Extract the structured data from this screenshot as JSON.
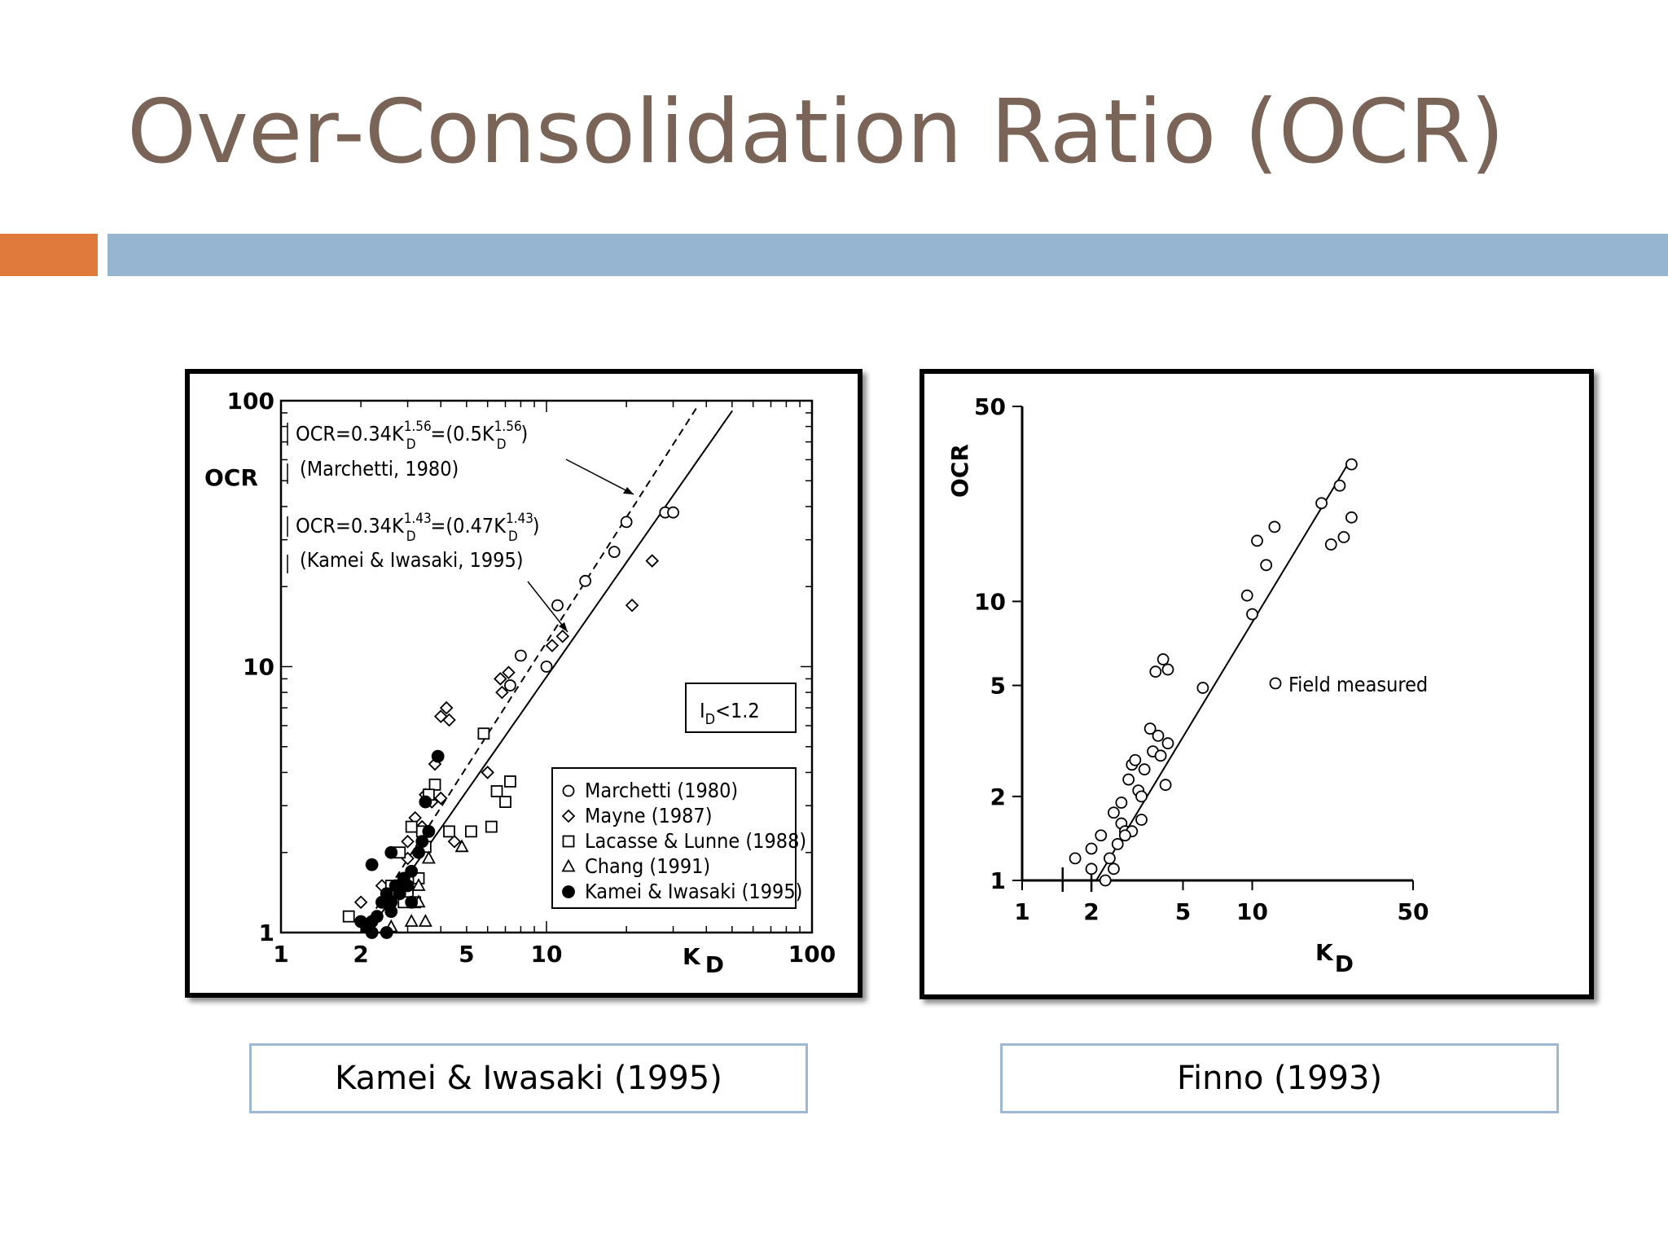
{
  "slide": {
    "title": "Over-Consolidation Ratio (OCR)",
    "colors": {
      "title": "#7a6357",
      "accent_orange": "#e07a3c",
      "accent_blue": "#95b5d1",
      "caption_border": "#9db8d4"
    }
  },
  "captions": {
    "left": "Kamei & Iwasaki (1995)",
    "right": "Finno (1993)"
  },
  "chart_data": [
    {
      "type": "scatter",
      "xscale": "log",
      "yscale": "log",
      "xlim": [
        1,
        100
      ],
      "ylim": [
        1,
        100
      ],
      "xlabel": "K",
      "xlabel_sub": "D",
      "ylabel": "OCR",
      "xticks": [
        1,
        2,
        5,
        10,
        100
      ],
      "yticks": [
        1,
        10,
        100
      ],
      "box_label": {
        "main": "I",
        "sub": "D",
        "rest": "<1.2"
      },
      "lines": [
        {
          "style": "dashed",
          "coef": 0.34,
          "exp": 1.56,
          "x": [
            1,
            100
          ]
        },
        {
          "style": "solid",
          "coef": 0.34,
          "exp": 1.43,
          "x": [
            1,
            100
          ]
        }
      ],
      "equations": [
        {
          "lhs": "OCR=0.34K",
          "sub": "D",
          "exp": "1.56",
          "mid": "=(0.5K",
          "sub2": "D",
          "exp2": "1.56",
          "end": ")",
          "ref": "(Marchetti, 1980)"
        },
        {
          "lhs": "OCR=0.34K",
          "sub": "D",
          "exp": "1.43",
          "mid": "=(0.47K",
          "sub2": "D",
          "exp2": "1.43",
          "end": ")",
          "ref": "(Kamei & Iwasaki, 1995)"
        }
      ],
      "legend_position": "lower-right",
      "series": [
        {
          "name": "Marchetti (1980)",
          "marker": "circle-open",
          "points": [
            [
              20,
              35
            ],
            [
              18,
              27
            ],
            [
              14,
              21
            ],
            [
              11,
              17
            ],
            [
              8,
              11
            ],
            [
              10,
              10
            ],
            [
              7.3,
              8.5
            ],
            [
              28,
              38
            ],
            [
              30,
              38
            ]
          ]
        },
        {
          "name": "Mayne (1987)",
          "marker": "diamond-open",
          "points": [
            [
              4.2,
              7
            ],
            [
              4,
              6.5
            ],
            [
              4.3,
              6.3
            ],
            [
              3.8,
              4.3
            ],
            [
              6,
              4
            ],
            [
              6.7,
              9
            ],
            [
              7.2,
              9.5
            ],
            [
              6.8,
              8
            ],
            [
              10.5,
              12
            ],
            [
              11.5,
              13
            ],
            [
              25,
              25
            ],
            [
              21,
              17
            ],
            [
              3.5,
              3.3
            ],
            [
              3.2,
              2.7
            ],
            [
              3,
              2.2
            ],
            [
              2.4,
              1.5
            ],
            [
              2,
              1.3
            ],
            [
              3.4,
              2.5
            ],
            [
              3.7,
              3.1
            ],
            [
              4,
              3.2
            ],
            [
              4.5,
              2.2
            ],
            [
              3,
              1.9
            ]
          ]
        },
        {
          "name": "Lacasse & Lunne (1988)",
          "marker": "square-open",
          "points": [
            [
              1.8,
              1.15
            ],
            [
              2.1,
              1.05
            ],
            [
              2.6,
              1.5
            ],
            [
              2.8,
              2
            ],
            [
              3,
              1.4
            ],
            [
              3.3,
              1.6
            ],
            [
              3.5,
              2.1
            ],
            [
              3.4,
              2.4
            ],
            [
              3.8,
              3.6
            ],
            [
              3.6,
              3.3
            ],
            [
              4.3,
              2.4
            ],
            [
              5.2,
              2.4
            ],
            [
              6.5,
              3.4
            ],
            [
              7.3,
              3.7
            ],
            [
              6.2,
              2.5
            ],
            [
              5.8,
              5.6
            ],
            [
              7,
              3.1
            ],
            [
              3.1,
              2.5
            ],
            [
              2.9,
              1.3
            ],
            [
              3.2,
              1.3
            ]
          ]
        },
        {
          "name": "Chang (1991)",
          "marker": "triangle-open",
          "points": [
            [
              3.5,
              1.1
            ],
            [
              3.3,
              1.3
            ],
            [
              2.6,
              1.05
            ],
            [
              3.3,
              1.5
            ],
            [
              4.8,
              2.1
            ],
            [
              3.6,
              1.9
            ],
            [
              3.1,
              1.1
            ]
          ]
        },
        {
          "name": "Kamei & Iwasaki (1995)",
          "marker": "circle-filled",
          "points": [
            [
              2,
              1.1
            ],
            [
              2.1,
              1.05
            ],
            [
              2.2,
              1.1
            ],
            [
              2.3,
              1.15
            ],
            [
              2.2,
              1
            ],
            [
              2.5,
              1.4
            ],
            [
              2.6,
              1.3
            ],
            [
              2.7,
              1.5
            ],
            [
              2.8,
              1.4
            ],
            [
              2.9,
              1.6
            ],
            [
              3,
              1.5
            ],
            [
              3.1,
              1.7
            ],
            [
              3.3,
              2
            ],
            [
              3.4,
              2.2
            ],
            [
              3.6,
              2.4
            ],
            [
              2.6,
              1.2
            ],
            [
              2.4,
              1.3
            ],
            [
              3.9,
              4.6
            ],
            [
              3.5,
              3.1
            ],
            [
              2.6,
              2
            ],
            [
              2.2,
              1.8
            ],
            [
              3.1,
              1.3
            ],
            [
              2.5,
              1
            ]
          ]
        }
      ]
    },
    {
      "type": "scatter",
      "xscale": "log",
      "yscale": "log",
      "xlim": [
        1,
        50
      ],
      "ylim": [
        1,
        50
      ],
      "xlabel": "K",
      "xlabel_sub": "D",
      "ylabel": "OCR",
      "xticks": [
        1,
        2,
        5,
        10,
        50
      ],
      "yticks": [
        1,
        2,
        5,
        10,
        50
      ],
      "lines": [
        {
          "style": "solid",
          "x": [
            2.1,
            26
          ],
          "y": [
            1,
            31
          ]
        }
      ],
      "legend_position": "center-right",
      "series": [
        {
          "name": "Field measured",
          "marker": "circle-open",
          "points": [
            [
              1.7,
              1.2
            ],
            [
              2,
              1.3
            ],
            [
              2,
              1.1
            ],
            [
              2.2,
              1.45
            ],
            [
              2.4,
              1.2
            ],
            [
              2.5,
              1.1
            ],
            [
              2.6,
              1.35
            ],
            [
              2.7,
              1.6
            ],
            [
              2.8,
              1.5
            ],
            [
              2.5,
              1.75
            ],
            [
              2.7,
              1.9
            ],
            [
              2.9,
              2.3
            ],
            [
              3,
              2.6
            ],
            [
              3.1,
              2.7
            ],
            [
              3.2,
              2.1
            ],
            [
              3.3,
              2
            ],
            [
              3.4,
              2.5
            ],
            [
              3.6,
              3.5
            ],
            [
              3.7,
              2.9
            ],
            [
              3.9,
              3.3
            ],
            [
              4,
              2.8
            ],
            [
              4.3,
              3.1
            ],
            [
              4.2,
              2.2
            ],
            [
              3.8,
              5.6
            ],
            [
              4.1,
              6.2
            ],
            [
              4.3,
              5.7
            ],
            [
              6.1,
              4.9
            ],
            [
              3,
              1.5
            ],
            [
              3.3,
              1.65
            ],
            [
              2.8,
              1.45
            ],
            [
              2.3,
              1
            ],
            [
              9.5,
              10.5
            ],
            [
              10,
              9
            ],
            [
              11.5,
              13.5
            ],
            [
              10.5,
              16.5
            ],
            [
              12.5,
              18.5
            ],
            [
              20,
              22.5
            ],
            [
              24,
              26
            ],
            [
              27,
              31
            ],
            [
              22,
              16
            ],
            [
              25,
              17
            ],
            [
              27,
              20
            ]
          ]
        }
      ]
    }
  ]
}
